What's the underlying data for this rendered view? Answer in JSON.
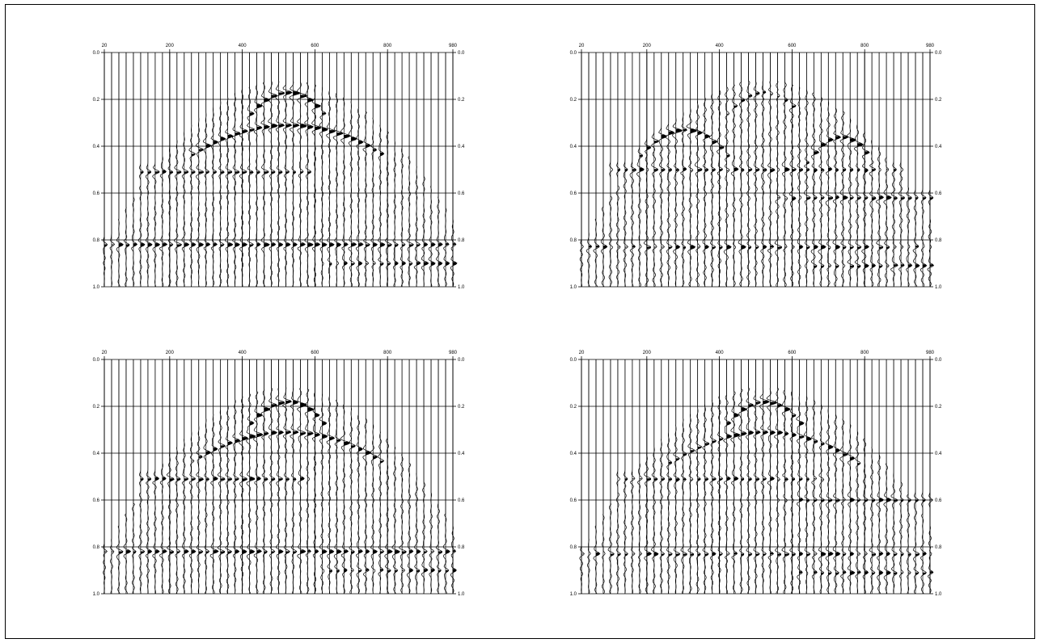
{
  "chart_data": [
    {
      "type": "seismic wiggle trace",
      "x_ticks": [
        "20",
        "200",
        "400",
        "600",
        "800",
        "980"
      ],
      "x_tick_values": [
        20,
        200,
        400,
        600,
        800,
        980
      ],
      "y_ticks": [
        "0.0",
        "0.2",
        "0.4",
        "0.6",
        "0.8",
        "1.0"
      ],
      "y_tick_values": [
        0.0,
        0.2,
        0.4,
        0.6,
        0.8,
        1.0
      ],
      "xlim": [
        20,
        980
      ],
      "ylim": [
        0.0,
        1.0
      ],
      "y_inverted": true,
      "grid": true,
      "trace_count": 49,
      "trace_spacing": 20,
      "events": [
        {
          "apex_x": 520,
          "apex_t": 0.17,
          "half_width": 110,
          "curvature": 0.05,
          "amplitude": 1.0
        },
        {
          "apex_x": 520,
          "apex_t": 0.31,
          "half_width": 270,
          "curvature": 0.06,
          "amplitude": 0.95
        },
        {
          "apex_x": 350,
          "apex_t": 0.51,
          "half_width": 240,
          "curvature": 0.0,
          "amplitude": 0.7
        },
        {
          "apex_x": 900,
          "apex_t": 0.9,
          "half_width": 280,
          "curvature": 0.0,
          "amplitude": 0.6
        },
        {
          "apex_x": 500,
          "apex_t": 0.82,
          "half_width": 500,
          "curvature": 0.0,
          "amplitude": 0.75
        }
      ],
      "noise_level": 0.5
    },
    {
      "type": "seismic wiggle trace",
      "x_ticks": [
        "20",
        "200",
        "400",
        "600",
        "800",
        "980"
      ],
      "x_tick_values": [
        20,
        200,
        400,
        600,
        800,
        980
      ],
      "y_ticks": [
        "0.0",
        "0.2",
        "0.4",
        "0.6",
        "0.8",
        "1.0"
      ],
      "y_tick_values": [
        0.0,
        0.2,
        0.4,
        0.6,
        0.8,
        1.0
      ],
      "xlim": [
        20,
        980
      ],
      "ylim": [
        0.0,
        1.0
      ],
      "y_inverted": true,
      "grid": true,
      "trace_count": 49,
      "trace_spacing": 20,
      "events": [
        {
          "apex_x": 520,
          "apex_t": 0.17,
          "half_width": 110,
          "curvature": 0.05,
          "amplitude": 0.6
        },
        {
          "apex_x": 300,
          "apex_t": 0.33,
          "half_width": 120,
          "curvature": 0.05,
          "amplitude": 0.9
        },
        {
          "apex_x": 730,
          "apex_t": 0.36,
          "half_width": 90,
          "curvature": 0.05,
          "amplitude": 0.9
        },
        {
          "apex_x": 500,
          "apex_t": 0.5,
          "half_width": 400,
          "curvature": 0.0,
          "amplitude": 0.6
        },
        {
          "apex_x": 800,
          "apex_t": 0.62,
          "half_width": 250,
          "curvature": 0.0,
          "amplitude": 0.6
        },
        {
          "apex_x": 500,
          "apex_t": 0.83,
          "half_width": 500,
          "curvature": 0.0,
          "amplitude": 0.55
        },
        {
          "apex_x": 900,
          "apex_t": 0.91,
          "half_width": 250,
          "curvature": 0.0,
          "amplitude": 0.6
        }
      ],
      "noise_level": 0.75
    },
    {
      "type": "seismic wiggle trace",
      "x_ticks": [
        "20",
        "200",
        "400",
        "600",
        "800",
        "980"
      ],
      "x_tick_values": [
        20,
        200,
        400,
        600,
        800,
        980
      ],
      "y_ticks": [
        "0.0",
        "0.2",
        "0.4",
        "0.6",
        "0.8",
        "1.0"
      ],
      "y_tick_values": [
        0.0,
        0.2,
        0.4,
        0.6,
        0.8,
        1.0
      ],
      "xlim": [
        20,
        980
      ],
      "ylim": [
        0.0,
        1.0
      ],
      "y_inverted": true,
      "grid": true,
      "trace_count": 49,
      "trace_spacing": 20,
      "events": [
        {
          "apex_x": 520,
          "apex_t": 0.18,
          "half_width": 110,
          "curvature": 0.05,
          "amplitude": 1.0
        },
        {
          "apex_x": 520,
          "apex_t": 0.31,
          "half_width": 270,
          "curvature": 0.06,
          "amplitude": 0.85
        },
        {
          "apex_x": 350,
          "apex_t": 0.51,
          "half_width": 240,
          "curvature": 0.0,
          "amplitude": 0.7
        },
        {
          "apex_x": 500,
          "apex_t": 0.82,
          "half_width": 500,
          "curvature": 0.0,
          "amplitude": 0.7
        },
        {
          "apex_x": 900,
          "apex_t": 0.9,
          "half_width": 280,
          "curvature": 0.0,
          "amplitude": 0.5
        }
      ],
      "noise_level": 0.6
    },
    {
      "type": "seismic wiggle trace",
      "x_ticks": [
        "20",
        "200",
        "400",
        "600",
        "800",
        "980"
      ],
      "x_tick_values": [
        20,
        200,
        400,
        600,
        800,
        980
      ],
      "y_ticks": [
        "0.0",
        "0.2",
        "0.4",
        "0.6",
        "0.8",
        "1.0"
      ],
      "y_tick_values": [
        0.0,
        0.2,
        0.4,
        0.6,
        0.8,
        1.0
      ],
      "xlim": [
        20,
        980
      ],
      "ylim": [
        0.0,
        1.0
      ],
      "y_inverted": true,
      "grid": true,
      "trace_count": 49,
      "trace_spacing": 20,
      "events": [
        {
          "apex_x": 520,
          "apex_t": 0.18,
          "half_width": 110,
          "curvature": 0.05,
          "amplitude": 0.9
        },
        {
          "apex_x": 520,
          "apex_t": 0.31,
          "half_width": 260,
          "curvature": 0.06,
          "amplitude": 0.8
        },
        {
          "apex_x": 400,
          "apex_t": 0.51,
          "half_width": 280,
          "curvature": 0.0,
          "amplitude": 0.6
        },
        {
          "apex_x": 780,
          "apex_t": 0.6,
          "half_width": 220,
          "curvature": 0.0,
          "amplitude": 0.55
        },
        {
          "apex_x": 500,
          "apex_t": 0.83,
          "half_width": 500,
          "curvature": 0.0,
          "amplitude": 0.6
        },
        {
          "apex_x": 880,
          "apex_t": 0.91,
          "half_width": 260,
          "curvature": 0.0,
          "amplitude": 0.55
        }
      ],
      "noise_level": 0.65
    }
  ]
}
